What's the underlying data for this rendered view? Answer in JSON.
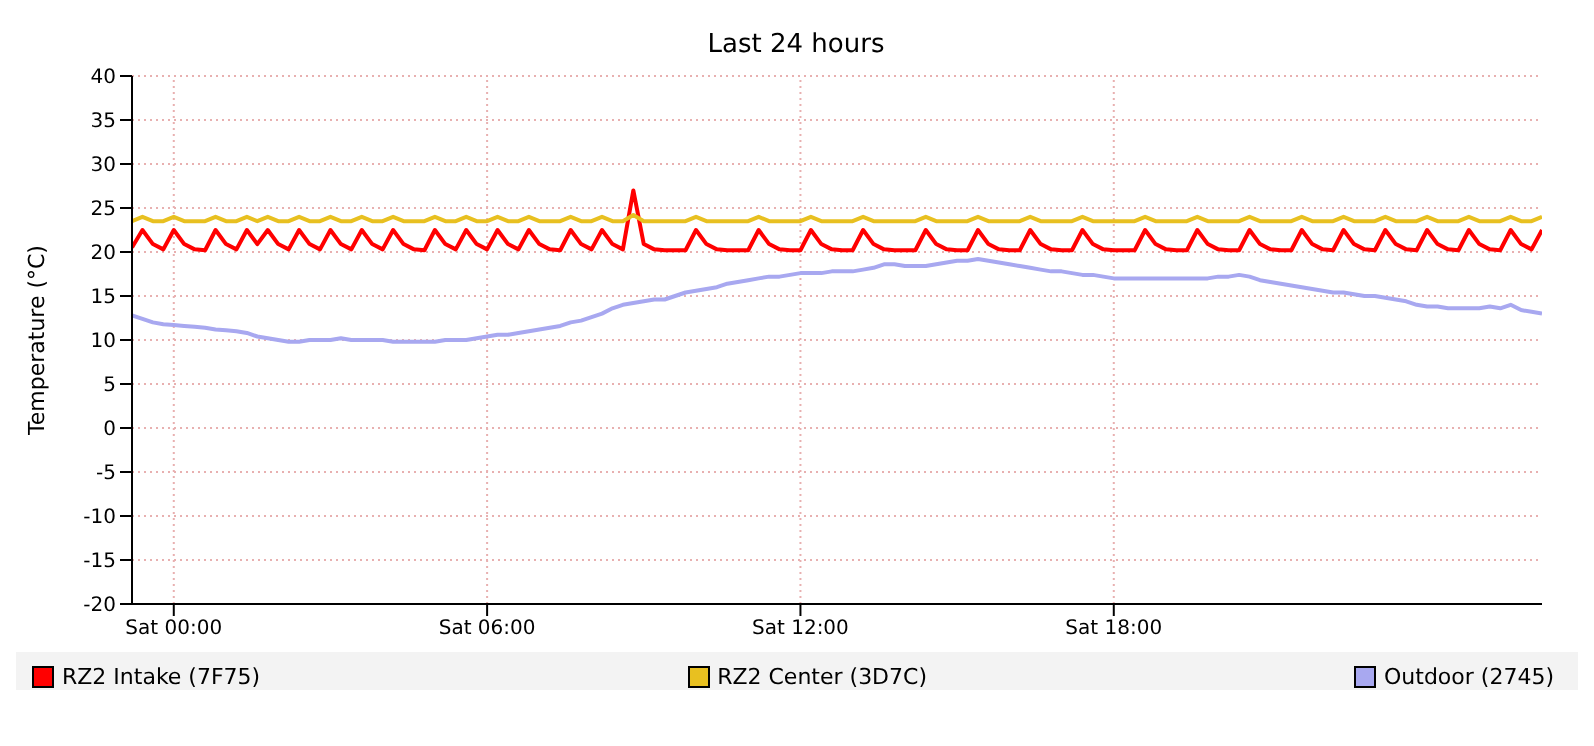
{
  "chart_data": {
    "type": "line",
    "title": "Last 24 hours",
    "ylabel": "Temperature (°C)",
    "categories": [
      null,
      null,
      null,
      null,
      "Sat 00:00",
      null,
      null,
      null,
      null,
      null,
      null,
      null,
      null,
      null,
      null,
      null,
      null,
      null,
      null,
      null,
      null,
      null,
      null,
      null,
      null,
      null,
      null,
      null,
      null,
      null,
      null,
      null,
      null,
      null,
      "Sat 06:00",
      null,
      null,
      null,
      null,
      null,
      null,
      null,
      null,
      null,
      null,
      null,
      null,
      null,
      null,
      null,
      null,
      null,
      null,
      null,
      null,
      null,
      null,
      null,
      null,
      null,
      null,
      null,
      null,
      null,
      "Sat 12:00",
      null,
      null,
      null,
      null,
      null,
      null,
      null,
      null,
      null,
      null,
      null,
      null,
      null,
      null,
      null,
      null,
      null,
      null,
      null,
      null,
      null,
      null,
      null,
      null,
      null,
      null,
      null,
      null,
      null,
      "Sat 18:00",
      null,
      null,
      null,
      null,
      null,
      null,
      null,
      null,
      null,
      null,
      null,
      null,
      null,
      null,
      null,
      null,
      null,
      null,
      null,
      null,
      null,
      null,
      null,
      null,
      null,
      null,
      null,
      null,
      null,
      null,
      null,
      null,
      null,
      null,
      null,
      null,
      null,
      null,
      null,
      null,
      null
    ],
    "ylim": [
      -20,
      40
    ],
    "yticks": [
      -20,
      -15,
      -10,
      -5,
      0,
      5,
      10,
      15,
      20,
      25,
      30,
      35,
      40
    ],
    "grid": true,
    "legend": "bottom",
    "marker": "none",
    "line_style": "solid",
    "series": [
      {
        "name": "RZ2 Intake (7F75)",
        "color": "#ff0000",
        "values": [
          20.5,
          22.5,
          20.9,
          20.3,
          22.5,
          20.9,
          20.3,
          20.2,
          22.5,
          20.9,
          20.3,
          22.5,
          20.9,
          22.5,
          20.9,
          20.3,
          22.5,
          20.9,
          20.3,
          22.5,
          20.9,
          20.3,
          22.5,
          20.9,
          20.3,
          22.5,
          20.9,
          20.3,
          20.2,
          22.5,
          20.9,
          20.3,
          22.5,
          20.9,
          20.3,
          22.5,
          20.9,
          20.3,
          22.5,
          20.9,
          20.3,
          20.2,
          22.5,
          20.9,
          20.3,
          22.5,
          20.9,
          20.3,
          27,
          20.9,
          20.3,
          20.2,
          20.2,
          20.2,
          22.5,
          20.9,
          20.3,
          20.2,
          20.2,
          20.2,
          22.5,
          20.9,
          20.3,
          20.2,
          20.2,
          22.5,
          20.9,
          20.3,
          20.2,
          20.2,
          22.5,
          20.9,
          20.3,
          20.2,
          20.2,
          20.2,
          22.5,
          20.9,
          20.3,
          20.2,
          20.2,
          22.5,
          20.9,
          20.3,
          20.2,
          20.2,
          22.5,
          20.9,
          20.3,
          20.2,
          20.2,
          22.5,
          20.9,
          20.3,
          20.2,
          20.2,
          20.2,
          22.5,
          20.9,
          20.3,
          20.2,
          20.2,
          22.5,
          20.9,
          20.3,
          20.2,
          20.2,
          22.5,
          20.9,
          20.3,
          20.2,
          20.2,
          22.5,
          20.9,
          20.3,
          20.2,
          22.5,
          20.9,
          20.3,
          20.2,
          22.5,
          20.9,
          20.3,
          20.2,
          22.5,
          20.9,
          20.3,
          20.2,
          22.5,
          20.9,
          20.3,
          20.2,
          22.5,
          20.9,
          20.3,
          22.5
        ]
      },
      {
        "name": "RZ2 Center (3D7C)",
        "color": "#e8c020",
        "values": [
          23.5,
          24,
          23.5,
          23.5,
          24,
          23.5,
          23.5,
          23.5,
          24,
          23.5,
          23.5,
          24,
          23.5,
          24,
          23.5,
          23.5,
          24,
          23.5,
          23.5,
          24,
          23.5,
          23.5,
          24,
          23.5,
          23.5,
          24,
          23.5,
          23.5,
          23.5,
          24,
          23.5,
          23.5,
          24,
          23.5,
          23.5,
          24,
          23.5,
          23.5,
          24,
          23.5,
          23.5,
          23.5,
          24,
          23.5,
          23.5,
          24,
          23.5,
          23.5,
          24.2,
          23.5,
          23.5,
          23.5,
          23.5,
          23.5,
          24,
          23.5,
          23.5,
          23.5,
          23.5,
          23.5,
          24,
          23.5,
          23.5,
          23.5,
          23.5,
          24,
          23.5,
          23.5,
          23.5,
          23.5,
          24,
          23.5,
          23.5,
          23.5,
          23.5,
          23.5,
          24,
          23.5,
          23.5,
          23.5,
          23.5,
          24,
          23.5,
          23.5,
          23.5,
          23.5,
          24,
          23.5,
          23.5,
          23.5,
          23.5,
          24,
          23.5,
          23.5,
          23.5,
          23.5,
          23.5,
          24,
          23.5,
          23.5,
          23.5,
          23.5,
          24,
          23.5,
          23.5,
          23.5,
          23.5,
          24,
          23.5,
          23.5,
          23.5,
          23.5,
          24,
          23.5,
          23.5,
          23.5,
          24,
          23.5,
          23.5,
          23.5,
          24,
          23.5,
          23.5,
          23.5,
          24,
          23.5,
          23.5,
          23.5,
          24,
          23.5,
          23.5,
          23.5,
          24,
          23.5,
          23.5,
          24
        ]
      },
      {
        "name": "Outdoor (2745)",
        "color": "#a8a8f0",
        "values": [
          12.8,
          12.4,
          12.0,
          11.8,
          11.7,
          11.6,
          11.5,
          11.4,
          11.2,
          11.1,
          11.0,
          10.8,
          10.4,
          10.2,
          10.0,
          9.8,
          9.8,
          10.0,
          10.0,
          10.0,
          10.2,
          10.0,
          10.0,
          10.0,
          10.0,
          9.8,
          9.8,
          9.8,
          9.8,
          9.8,
          10.0,
          10.0,
          10.0,
          10.2,
          10.4,
          10.6,
          10.6,
          10.8,
          11.0,
          11.2,
          11.4,
          11.6,
          12.0,
          12.2,
          12.6,
          13.0,
          13.6,
          14.0,
          14.2,
          14.4,
          14.6,
          14.6,
          15.0,
          15.4,
          15.6,
          15.8,
          16.0,
          16.4,
          16.6,
          16.8,
          17.0,
          17.2,
          17.2,
          17.4,
          17.6,
          17.6,
          17.6,
          17.8,
          17.8,
          17.8,
          18.0,
          18.2,
          18.6,
          18.6,
          18.4,
          18.4,
          18.4,
          18.6,
          18.8,
          19.0,
          19.0,
          19.2,
          19.0,
          18.8,
          18.6,
          18.4,
          18.2,
          18.0,
          17.8,
          17.8,
          17.6,
          17.4,
          17.4,
          17.2,
          17.0,
          17.0,
          17.0,
          17.0,
          17.0,
          17.0,
          17.0,
          17.0,
          17.0,
          17.0,
          17.2,
          17.2,
          17.4,
          17.2,
          16.8,
          16.6,
          16.4,
          16.2,
          16.0,
          15.8,
          15.6,
          15.4,
          15.4,
          15.2,
          15.0,
          15.0,
          14.8,
          14.6,
          14.4,
          14.0,
          13.8,
          13.8,
          13.6,
          13.6,
          13.6,
          13.6,
          13.8,
          13.6,
          14.0,
          13.4,
          13.2,
          13.0
        ]
      }
    ]
  }
}
